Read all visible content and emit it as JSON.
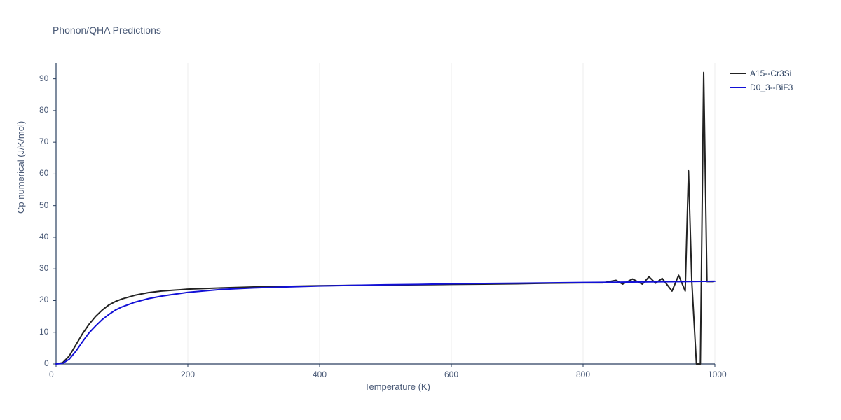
{
  "title": "Phonon/QHA Predictions",
  "xlabel": "Temperature (K)",
  "ylabel": "Cp numerical (J/K/mol)",
  "chart": {
    "type": "line",
    "background_color": "#ffffff",
    "grid_color": "#ececec",
    "axis_color": "#2a3f5f",
    "title_fontsize": 14,
    "label_fontsize": 13,
    "tick_fontsize": 12,
    "line_width": 2,
    "xlim": [
      0,
      1000
    ],
    "ylim": [
      0,
      95
    ],
    "xtick_step": 200,
    "yticks": [
      0,
      10,
      20,
      30,
      40,
      50,
      60,
      70,
      80,
      90
    ],
    "series": [
      {
        "name": "A15--Cr3Si",
        "color": "#222222",
        "x": [
          0,
          10,
          20,
          30,
          40,
          50,
          60,
          70,
          80,
          90,
          100,
          120,
          140,
          160,
          180,
          200,
          250,
          300,
          350,
          400,
          450,
          500,
          550,
          600,
          650,
          700,
          750,
          800,
          830,
          850,
          860,
          875,
          890,
          900,
          910,
          920,
          935,
          945,
          955,
          960,
          965,
          972,
          978,
          983,
          988,
          993,
          998
        ],
        "y": [
          0,
          0.4,
          2.5,
          6,
          9.5,
          12.5,
          15,
          17,
          18.6,
          19.7,
          20.5,
          21.7,
          22.5,
          23.0,
          23.3,
          23.6,
          24.0,
          24.3,
          24.5,
          24.7,
          24.8,
          24.9,
          25.0,
          25.1,
          25.2,
          25.3,
          25.5,
          25.6,
          25.6,
          26.4,
          25.2,
          26.8,
          25.2,
          27.5,
          25.5,
          27.0,
          23.0,
          28.0,
          23.0,
          61,
          26,
          0,
          0,
          92,
          26,
          26,
          26
        ]
      },
      {
        "name": "D0_3--BiF3",
        "color": "#1210d6",
        "x": [
          0,
          10,
          20,
          30,
          40,
          50,
          60,
          70,
          80,
          90,
          100,
          120,
          140,
          160,
          180,
          200,
          250,
          300,
          350,
          400,
          450,
          500,
          550,
          600,
          650,
          700,
          750,
          800,
          850,
          900,
          950,
          1000
        ],
        "y": [
          0,
          0.2,
          1.5,
          4,
          7,
          9.8,
          12,
          14,
          15.6,
          17,
          18,
          19.5,
          20.6,
          21.4,
          22.0,
          22.6,
          23.5,
          24.0,
          24.3,
          24.6,
          24.8,
          25.0,
          25.1,
          25.3,
          25.4,
          25.5,
          25.6,
          25.7,
          25.8,
          25.9,
          26.0,
          26.1
        ]
      }
    ]
  },
  "legend": {
    "items": [
      {
        "label": "A15--Cr3Si",
        "color": "#222222"
      },
      {
        "label": "D0_3--BiF3",
        "color": "#1210d6"
      }
    ]
  }
}
